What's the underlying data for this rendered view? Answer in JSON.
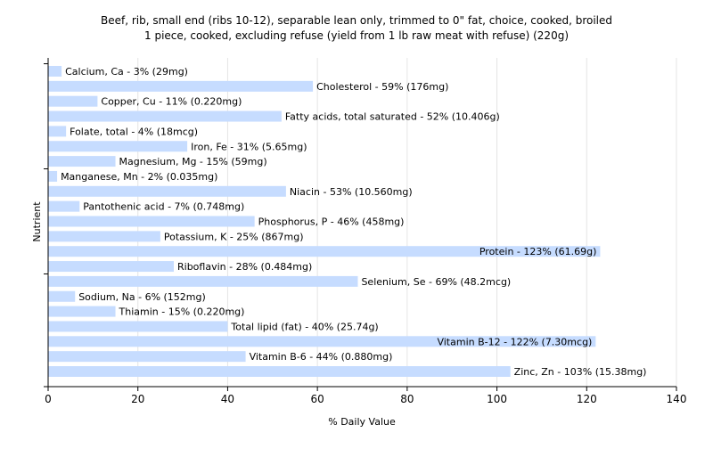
{
  "chart_data": {
    "type": "bar",
    "orientation": "horizontal",
    "title": "Beef, rib, small end (ribs 10-12), separable lean only, trimmed to 0\" fat, choice, cooked, broiled",
    "subtitle": "1 piece, cooked, excluding refuse (yield from 1 lb raw meat with refuse) (220g)",
    "xlabel": "% Daily Value",
    "ylabel": "Nutrient",
    "xlim": [
      0,
      140
    ],
    "x_ticks": [
      "0",
      "20",
      "40",
      "60",
      "80",
      "100",
      "120",
      "140"
    ],
    "grid": "vertical",
    "bar_color": "#c6dcff",
    "categories": [
      "Calcium, Ca",
      "Cholesterol",
      "Copper, Cu",
      "Fatty acids, total saturated",
      "Folate, total",
      "Iron, Fe",
      "Magnesium, Mg",
      "Manganese, Mn",
      "Niacin",
      "Pantothenic acid",
      "Phosphorus, P",
      "Potassium, K",
      "Protein",
      "Riboflavin",
      "Selenium, Se",
      "Sodium, Na",
      "Thiamin",
      "Total lipid (fat)",
      "Vitamin B-12",
      "Vitamin B-6",
      "Zinc, Zn"
    ],
    "values": [
      3,
      59,
      11,
      52,
      4,
      31,
      15,
      2,
      53,
      7,
      46,
      25,
      123,
      28,
      69,
      6,
      15,
      40,
      122,
      44,
      103
    ],
    "bar_labels": [
      "Calcium, Ca - 3% (29mg)",
      "Cholesterol - 59% (176mg)",
      "Copper, Cu - 11% (0.220mg)",
      "Fatty acids, total saturated - 52% (10.406g)",
      "Folate, total - 4% (18mcg)",
      "Iron, Fe - 31% (5.65mg)",
      "Magnesium, Mg - 15% (59mg)",
      "Manganese, Mn - 2% (0.035mg)",
      "Niacin - 53% (10.560mg)",
      "Pantothenic acid - 7% (0.748mg)",
      "Phosphorus, P - 46% (458mg)",
      "Potassium, K - 25% (867mg)",
      "Protein - 123% (61.69g)",
      "Riboflavin - 28% (0.484mg)",
      "Selenium, Se - 69% (48.2mcg)",
      "Sodium, Na - 6% (152mg)",
      "Thiamin - 15% (0.220mg)",
      "Total lipid (fat) - 40% (25.74g)",
      "Vitamin B-12 - 122% (7.30mcg)",
      "Vitamin B-6 - 44% (0.880mg)",
      "Zinc, Zn - 103% (15.38mg)"
    ]
  }
}
